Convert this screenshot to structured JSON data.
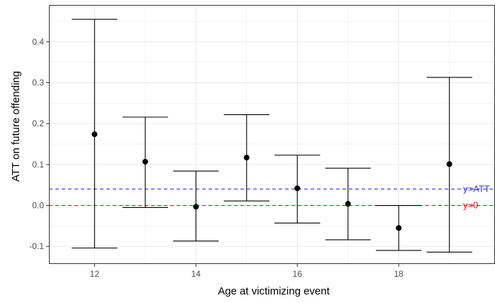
{
  "chart_data": {
    "type": "scatter",
    "title": "",
    "xlabel": "Age at victimizing event",
    "ylabel": "ATT on future offending",
    "xlim": [
      11.1,
      19.9
    ],
    "ylim": [
      -0.143,
      0.49
    ],
    "grid": true,
    "x_ticks": [
      12,
      14,
      16,
      18
    ],
    "y_ticks": [
      -0.1,
      0.0,
      0.1,
      0.2,
      0.3,
      0.4
    ],
    "y_tick_labels": [
      "-0.1",
      "0.0",
      "0.1",
      "0.2",
      "0.3",
      "0.4"
    ],
    "series": [
      {
        "points": [
          {
            "x": 12,
            "y": 0.174,
            "lower": -0.104,
            "upper": 0.455
          },
          {
            "x": 13,
            "y": 0.107,
            "lower": -0.005,
            "upper": 0.216
          },
          {
            "x": 14,
            "y": -0.003,
            "lower": -0.087,
            "upper": 0.084
          },
          {
            "x": 15,
            "y": 0.117,
            "lower": 0.011,
            "upper": 0.222
          },
          {
            "x": 16,
            "y": 0.042,
            "lower": -0.043,
            "upper": 0.123
          },
          {
            "x": 17,
            "y": 0.004,
            "lower": -0.084,
            "upper": 0.091
          },
          {
            "x": 18,
            "y": -0.055,
            "lower": -0.11,
            "upper": 0.0
          },
          {
            "x": 19,
            "y": 0.101,
            "lower": -0.114,
            "upper": 0.313
          }
        ]
      }
    ],
    "reference_lines": [
      {
        "label": "y=ATT",
        "y": 0.04,
        "color": "#3a3af0",
        "style": "dashed"
      },
      {
        "label": "y=0",
        "y": 0.0,
        "color": "#e8191b",
        "style": "dashed"
      }
    ],
    "colors": {
      "points": "#000000",
      "errorbars": "#000000",
      "grid": "#ebebeb",
      "panel_border": "#333333"
    }
  }
}
